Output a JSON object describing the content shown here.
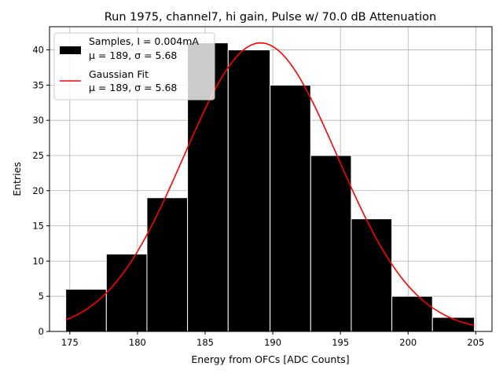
{
  "chart_data": {
    "type": "bar",
    "title": "Run 1975, channel7, hi gain, Pulse w/ 70.0 dB Attenuation",
    "xlabel": "Energy from OFCs [ADC Counts]",
    "ylabel": "Entries",
    "xlim": [
      173.5,
      206.2
    ],
    "ylim": [
      0,
      43.3
    ],
    "grid": true,
    "legend_position": "top-left",
    "x_ticks": [
      175,
      180,
      185,
      190,
      195,
      200,
      205
    ],
    "y_ticks": [
      0,
      5,
      10,
      15,
      20,
      25,
      30,
      35,
      40
    ],
    "histogram": {
      "name": "Samples, I = 0.004mA",
      "stats": "μ = 189, σ = 5.68",
      "color": "#000000",
      "edge_color": "#ffffff",
      "bin_edges": [
        174.7,
        177.7,
        180.7,
        183.7,
        186.7,
        189.8,
        192.8,
        195.8,
        198.8,
        201.8,
        204.9
      ],
      "counts": [
        6,
        11,
        19,
        41,
        40,
        35,
        25,
        16,
        5,
        2
      ]
    },
    "fit": {
      "name": "Gaussian Fit",
      "stats": "μ = 189, σ = 5.68",
      "color": "#ff0000",
      "mu": 189.1,
      "sigma": 5.68,
      "amplitude": 41.0,
      "x_range": [
        174.7,
        204.9
      ]
    }
  }
}
